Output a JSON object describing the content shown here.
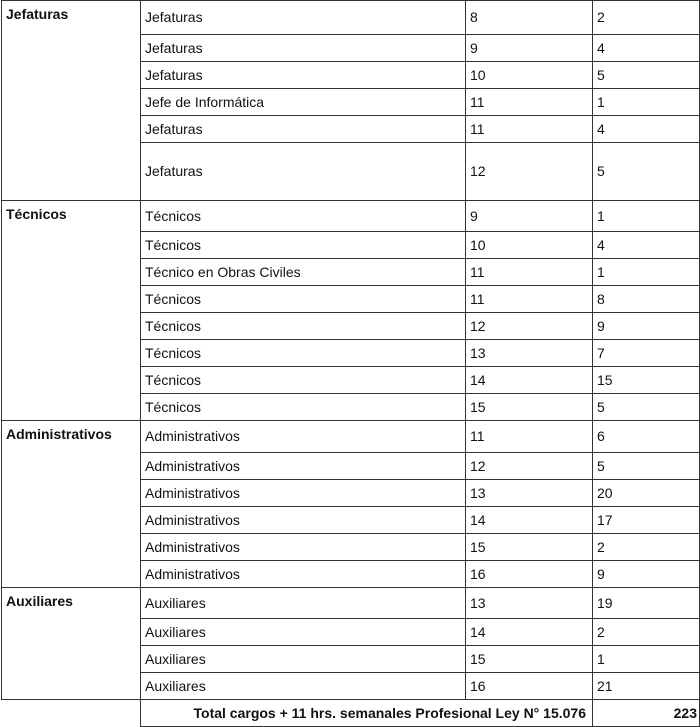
{
  "groups": [
    {
      "name": "Jefaturas",
      "rows": [
        [
          "Jefaturas",
          "8",
          "2"
        ],
        [
          "Jefaturas",
          "9",
          "4"
        ],
        [
          "Jefaturas",
          "10",
          "5"
        ],
        [
          "Jefe de Informática",
          "11",
          "1"
        ],
        [
          "Jefaturas",
          "11",
          "4"
        ],
        [
          "Jefaturas",
          "12",
          "5"
        ]
      ]
    },
    {
      "name": "Técnicos",
      "rows": [
        [
          "Técnicos",
          "9",
          "1"
        ],
        [
          "Técnicos",
          "10",
          "4"
        ],
        [
          "Técnico en Obras Civiles",
          "11",
          "1"
        ],
        [
          "Técnicos",
          "11",
          "8"
        ],
        [
          "Técnicos",
          "12",
          "9"
        ],
        [
          "Técnicos",
          "13",
          "7"
        ],
        [
          "Técnicos",
          "14",
          "15"
        ],
        [
          "Técnicos",
          "15",
          "5"
        ]
      ]
    },
    {
      "name": "Administrativos",
      "rows": [
        [
          "Administrativos",
          "11",
          "6"
        ],
        [
          "Administrativos",
          "12",
          "5"
        ],
        [
          "Administrativos",
          "13",
          "20"
        ],
        [
          "Administrativos",
          "14",
          "17"
        ],
        [
          "Administrativos",
          "15",
          "2"
        ],
        [
          "Administrativos",
          "16",
          "9"
        ]
      ]
    },
    {
      "name": "Auxiliares",
      "rows": [
        [
          "Auxiliares",
          "13",
          "19"
        ],
        [
          "Auxiliares",
          "14",
          "2"
        ],
        [
          "Auxiliares",
          "15",
          "1"
        ],
        [
          "Auxiliares",
          "16",
          "21"
        ]
      ]
    }
  ],
  "total": {
    "label": "Total cargos + 11 hrs. semanales Profesional Ley N° 15.076",
    "value": "223"
  }
}
